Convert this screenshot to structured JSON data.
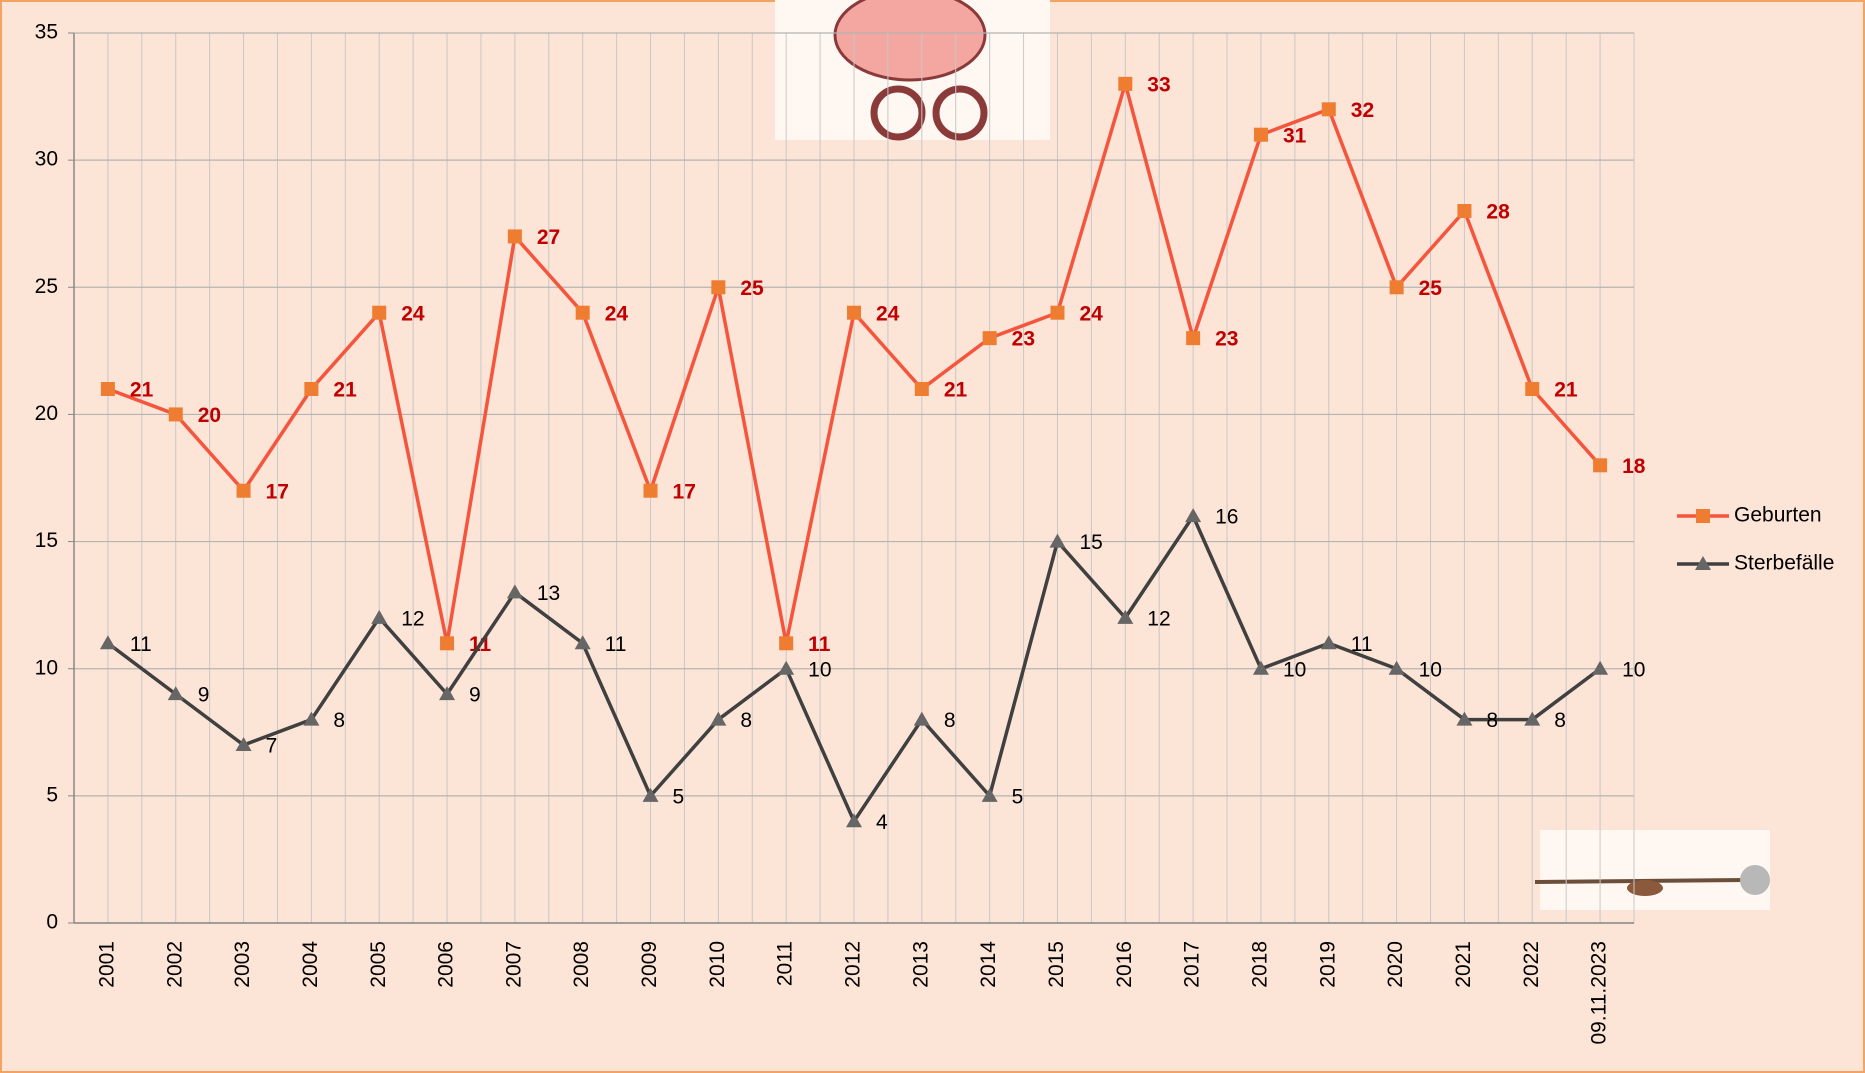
{
  "chart_data": {
    "type": "line",
    "categories": [
      "2001",
      "2002",
      "2003",
      "2004",
      "2005",
      "2006",
      "2007",
      "2008",
      "2009",
      "2010",
      "2011",
      "2012",
      "2013",
      "2014",
      "2015",
      "2016",
      "2017",
      "2018",
      "2019",
      "2020",
      "2021",
      "2022",
      "09.11.2023"
    ],
    "series": [
      {
        "name": "Geburten",
        "color": "#f4553c",
        "marker_color": "#ee7d31",
        "label_color": "#c00000",
        "marker": "square",
        "values": [
          21,
          20,
          17,
          21,
          24,
          11,
          27,
          24,
          17,
          25,
          11,
          24,
          21,
          23,
          24,
          33,
          23,
          31,
          32,
          25,
          28,
          21,
          18
        ]
      },
      {
        "name": "Sterbefälle",
        "color": "#404040",
        "marker_color": "#666666",
        "label_color": "#000000",
        "marker": "triangle",
        "values": [
          11,
          9,
          7,
          8,
          12,
          9,
          13,
          11,
          5,
          8,
          10,
          4,
          8,
          5,
          15,
          12,
          16,
          10,
          11,
          10,
          8,
          8,
          10
        ]
      }
    ],
    "ylim": [
      0,
      35
    ],
    "yticks": [
      0,
      5,
      10,
      15,
      20,
      25,
      30,
      35
    ],
    "grid": true,
    "legend": "right"
  }
}
